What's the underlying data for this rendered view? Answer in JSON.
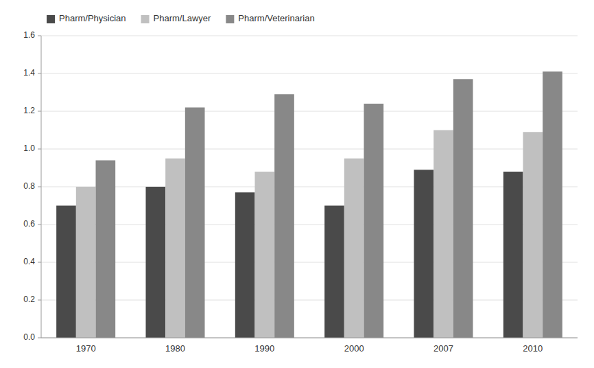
{
  "chart_data": {
    "type": "bar",
    "categories": [
      "1970",
      "1980",
      "1990",
      "2000",
      "2007",
      "2010"
    ],
    "series": [
      {
        "name": "Pharm/Physician",
        "color": "#4a4a4a",
        "values": [
          0.7,
          0.8,
          0.77,
          0.7,
          0.89,
          0.88
        ]
      },
      {
        "name": "Pharm/Lawyer",
        "color": "#c0c0c0",
        "values": [
          0.8,
          0.95,
          0.88,
          0.95,
          1.1,
          1.09
        ]
      },
      {
        "name": "Pharm/Veterinarian",
        "color": "#888888",
        "values": [
          0.94,
          1.22,
          1.29,
          1.24,
          1.37,
          1.41
        ]
      }
    ],
    "ylim": [
      0,
      1.6
    ],
    "yticks": [
      {
        "value": 0,
        "label": "0.0"
      },
      0.2,
      0.4,
      0.6,
      0.8,
      {
        "value": 1,
        "label": "1.0"
      },
      1.2,
      1.4,
      1.6
    ],
    "grid": true,
    "legend": "upper left"
  }
}
